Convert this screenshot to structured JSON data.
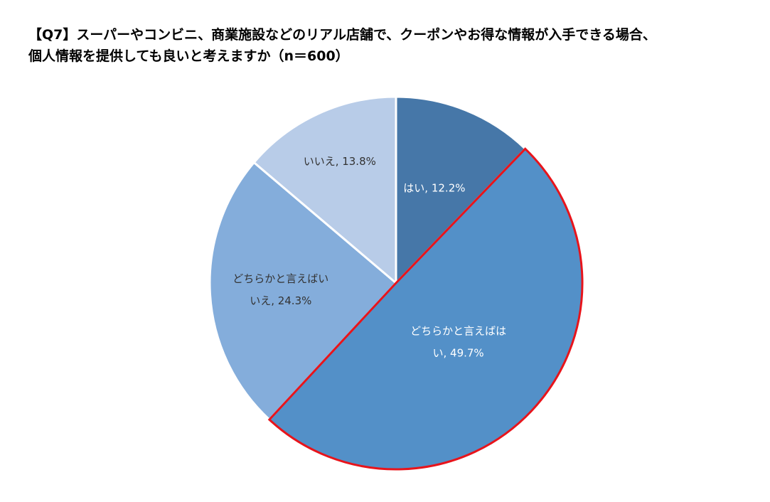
{
  "title": {
    "line1": "【Q7】スーパーやコンビニ、商業施設などのリアル店舗で、クーポンやお得な情報が入手できる場合、",
    "line2": "個人情報を提供しても良いと考えますか（n＝600）"
  },
  "chart_data": {
    "type": "pie",
    "title": "【Q7】スーパーやコンビニ、商業施設などのリアル店舗で、クーポンやお得な情報が入手できる場合、個人情報を提供しても良いと考えますか（n＝600）",
    "n": 600,
    "start_angle_deg": 0,
    "direction": "clockwise",
    "highlighted_slice": "どちらかと言えばはい",
    "highlight_color": "#e8141b",
    "slices": [
      {
        "name": "はい",
        "value": 12.2,
        "color": "#4677a8",
        "label_lines": [
          "はい, 12.2%"
        ],
        "label_color": "#ffffff"
      },
      {
        "name": "どちらかと言えばはい",
        "value": 49.7,
        "color": "#5390c8",
        "label_lines": [
          "どちらかと言えばは",
          "い, 49.7%"
        ],
        "label_color": "#ffffff"
      },
      {
        "name": "どちらかと言えばいいえ",
        "value": 24.3,
        "color": "#84addb",
        "label_lines": [
          "どちらかと言えばい",
          "いえ, 24.3%"
        ],
        "label_color": "#333333"
      },
      {
        "name": "いいえ",
        "value": 13.8,
        "color": "#b8cce8",
        "label_lines": [
          "いいえ, 13.8%"
        ],
        "label_color": "#333333"
      }
    ]
  }
}
